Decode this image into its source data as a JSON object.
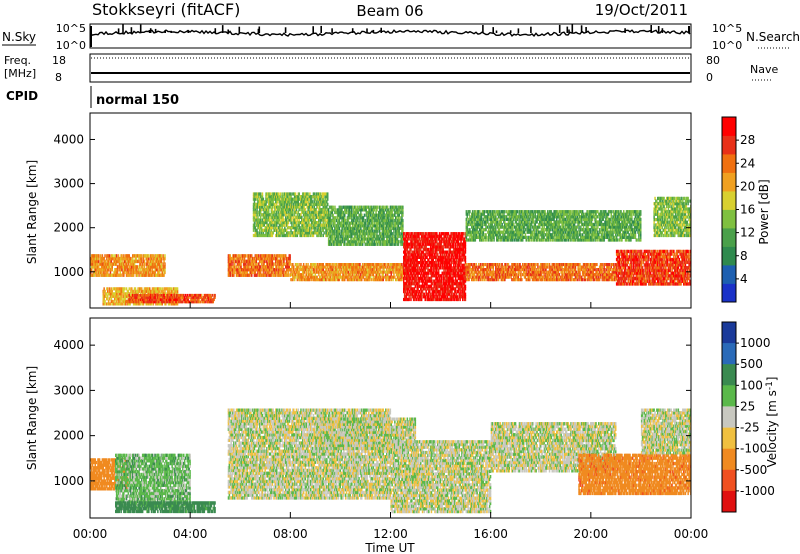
{
  "header": {
    "station": "Stokkseyri (fitACF)",
    "beam": "Beam 06",
    "date": "19/Oct/2011"
  },
  "aux_panels": {
    "noise_left_label": "N.Sky",
    "noise_right_label": "N.Search",
    "noise_ticks_left": [
      "10^5",
      "10^0"
    ],
    "noise_ticks_right": [
      "10^5",
      "10^0"
    ],
    "freq_label_line1": "Freq.",
    "freq_label_line2": "[MHz]",
    "freq_ticks": [
      "18",
      "8"
    ],
    "nave_label": "Nave",
    "nave_ticks": [
      "80",
      "0"
    ],
    "cpid_label": "CPID",
    "cpid_value": "normal 150"
  },
  "colors": {
    "power_scale": [
      "#1a32c8",
      "#1d5fb0",
      "#2f8a4e",
      "#4aa04a",
      "#7fc040",
      "#d8d030",
      "#f0a020",
      "#f07010",
      "#e83018",
      "#ff0000"
    ],
    "velocity_scale": [
      "#1a3a9a",
      "#2a6ab8",
      "#3a8a50",
      "#5ab84a",
      "#c8c8c0",
      "#f0c040",
      "#f08a20",
      "#f05020",
      "#e01010"
    ],
    "ground_scatter": "#c8c8c0"
  },
  "chart_data": [
    {
      "type": "heatmap",
      "name": "power",
      "ylabel": "Slant Range [km]",
      "ylim": [
        180,
        4600
      ],
      "y_ticks": [
        1000,
        2000,
        3000,
        4000
      ],
      "xlim": [
        0,
        24
      ],
      "colorbar_label": "Power [dB]",
      "colorbar_ticks": [
        4,
        8,
        12,
        16,
        20,
        24,
        28
      ],
      "colorbar_range": [
        0,
        32
      ],
      "bands": [
        {
          "t0": 0.0,
          "t1": 3.0,
          "r0": 900,
          "r1": 1400,
          "level": 22
        },
        {
          "t0": 0.5,
          "t1": 3.5,
          "r0": 250,
          "r1": 650,
          "level": 20
        },
        {
          "t0": 1.5,
          "t1": 5.0,
          "r0": 300,
          "r1": 500,
          "level": 26
        },
        {
          "t0": 5.5,
          "t1": 8.0,
          "r0": 900,
          "r1": 1400,
          "level": 24
        },
        {
          "t0": 6.5,
          "t1": 9.5,
          "r0": 1800,
          "r1": 2800,
          "level": 14
        },
        {
          "t0": 8.0,
          "t1": 12.5,
          "r0": 800,
          "r1": 1200,
          "level": 22
        },
        {
          "t0": 9.5,
          "t1": 12.5,
          "r0": 1600,
          "r1": 2500,
          "level": 12
        },
        {
          "t0": 12.5,
          "t1": 15.0,
          "r0": 350,
          "r1": 1900,
          "level": 30
        },
        {
          "t0": 15.0,
          "t1": 21.0,
          "r0": 800,
          "r1": 1200,
          "level": 24
        },
        {
          "t0": 15.0,
          "t1": 22.0,
          "r0": 1700,
          "r1": 2400,
          "level": 12
        },
        {
          "t0": 21.0,
          "t1": 24.0,
          "r0": 700,
          "r1": 1500,
          "level": 27
        },
        {
          "t0": 22.5,
          "t1": 24.0,
          "r0": 1800,
          "r1": 2700,
          "level": 14
        }
      ]
    },
    {
      "type": "heatmap",
      "name": "velocity",
      "ylabel": "Slant Range [km]",
      "ylim": [
        180,
        4600
      ],
      "y_ticks": [
        1000,
        2000,
        3000,
        4000
      ],
      "xlim": [
        0,
        24
      ],
      "xlabel": "Time UT",
      "x_ticks": [
        "00:00",
        "04:00",
        "08:00",
        "12:00",
        "16:00",
        "20:00",
        "00:00"
      ],
      "colorbar_label": "Velocity [m s-1]",
      "colorbar_ticks": [
        "1000",
        "500",
        "100",
        "25",
        "-25",
        "-100",
        "-500",
        "-1000"
      ],
      "bands": [
        {
          "t0": 0.0,
          "t1": 1.5,
          "r0": 800,
          "r1": 1500,
          "level": -350
        },
        {
          "t0": 1.0,
          "t1": 4.0,
          "r0": 400,
          "r1": 1600,
          "level": 60
        },
        {
          "t0": 1.0,
          "t1": 5.0,
          "r0": 300,
          "r1": 550,
          "level": 150
        },
        {
          "t0": 5.5,
          "t1": 12.0,
          "r0": 600,
          "r1": 2600,
          "level": 0
        },
        {
          "t0": 9.0,
          "t1": 13.0,
          "r0": 1700,
          "r1": 2400,
          "level": 0
        },
        {
          "t0": 12.0,
          "t1": 16.0,
          "r0": 300,
          "r1": 1900,
          "level": 0
        },
        {
          "t0": 16.0,
          "t1": 21.0,
          "r0": 1200,
          "r1": 2300,
          "level": 0
        },
        {
          "t0": 19.5,
          "t1": 24.0,
          "r0": 700,
          "r1": 1600,
          "level": -450
        },
        {
          "t0": 22.0,
          "t1": 24.0,
          "r0": 1600,
          "r1": 2600,
          "level": 0
        }
      ]
    }
  ]
}
